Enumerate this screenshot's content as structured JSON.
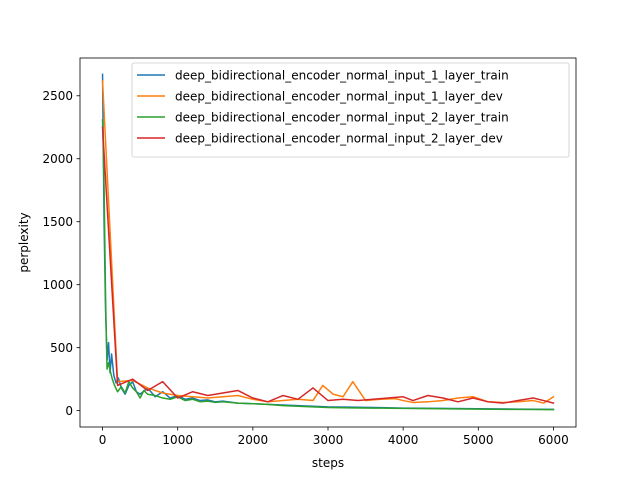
{
  "chart_data": {
    "type": "line",
    "title": "",
    "xlabel": "steps",
    "ylabel": "perplexity",
    "xlim": [
      -300,
      6300
    ],
    "ylim": [
      -130,
      2800
    ],
    "xticks": [
      0,
      1000,
      2000,
      3000,
      4000,
      5000,
      6000
    ],
    "yticks": [
      0,
      500,
      1000,
      1500,
      2000,
      2500
    ],
    "grid": false,
    "legend": "top-right",
    "series": [
      {
        "name": "deep_bidirectional_encoder_normal_input_1_layer_train",
        "color": "#1f77b4",
        "x": [
          0,
          20,
          40,
          60,
          80,
          100,
          120,
          150,
          180,
          210,
          250,
          300,
          350,
          400,
          450,
          500,
          600,
          700,
          800,
          900,
          1000,
          1100,
          1200,
          1300,
          1400,
          1500,
          1600,
          1800,
          2000,
          2200,
          2400,
          2600,
          2800,
          3000,
          3300,
          3600,
          4000,
          4500,
          5000,
          5500,
          6000
        ],
        "y": [
          2670,
          1500,
          800,
          400,
          540,
          300,
          450,
          280,
          220,
          260,
          180,
          130,
          200,
          230,
          150,
          130,
          180,
          110,
          150,
          100,
          120,
          90,
          100,
          80,
          85,
          70,
          75,
          60,
          55,
          50,
          45,
          40,
          35,
          30,
          28,
          25,
          20,
          18,
          15,
          12,
          10
        ]
      },
      {
        "name": "deep_bidirectional_encoder_normal_input_1_layer_dev",
        "color": "#ff7f0e",
        "x": [
          0,
          200,
          400,
          600,
          800,
          1000,
          1200,
          1400,
          1600,
          1800,
          2000,
          2200,
          2400,
          2600,
          2800,
          2930,
          3070,
          3200,
          3330,
          3500,
          3700,
          3900,
          4000,
          4130,
          4330,
          4530,
          4730,
          4930,
          5130,
          5330,
          5530,
          5730,
          5870,
          6000
        ],
        "y": [
          2620,
          230,
          240,
          180,
          140,
          120,
          110,
          100,
          110,
          120,
          90,
          70,
          80,
          90,
          80,
          200,
          130,
          110,
          230,
          80,
          90,
          95,
          80,
          65,
          70,
          80,
          100,
          110,
          70,
          65,
          70,
          80,
          60,
          110
        ]
      },
      {
        "name": "deep_bidirectional_encoder_normal_input_2_layer_train",
        "color": "#2ca02c",
        "x": [
          0,
          20,
          40,
          60,
          80,
          100,
          130,
          160,
          200,
          250,
          300,
          350,
          400,
          450,
          500,
          550,
          600,
          700,
          800,
          900,
          1000,
          1100,
          1200,
          1300,
          1400,
          1500,
          1600,
          1800,
          2000,
          2200,
          2400,
          2600,
          2800,
          3000,
          3300,
          3600,
          4000,
          4500,
          5000,
          5500,
          6000
        ],
        "y": [
          2310,
          1800,
          900,
          330,
          380,
          320,
          250,
          200,
          150,
          190,
          140,
          230,
          180,
          150,
          100,
          160,
          130,
          120,
          100,
          90,
          110,
          80,
          90,
          70,
          75,
          65,
          70,
          60,
          55,
          50,
          40,
          35,
          30,
          25,
          22,
          20,
          18,
          15,
          12,
          10,
          8
        ]
      },
      {
        "name": "deep_bidirectional_encoder_normal_input_2_layer_dev",
        "color": "#d62728",
        "x": [
          0,
          200,
          400,
          600,
          800,
          1000,
          1200,
          1400,
          1600,
          1800,
          2000,
          2200,
          2400,
          2600,
          2800,
          3000,
          3200,
          3400,
          3600,
          3800,
          4000,
          4130,
          4330,
          4530,
          4730,
          4930,
          5130,
          5330,
          5530,
          5730,
          5870,
          6000
        ],
        "y": [
          2250,
          200,
          250,
          160,
          230,
          100,
          150,
          120,
          140,
          160,
          100,
          70,
          120,
          90,
          180,
          80,
          90,
          80,
          90,
          100,
          110,
          80,
          120,
          100,
          70,
          100,
          70,
          60,
          80,
          100,
          80,
          60
        ]
      }
    ]
  }
}
